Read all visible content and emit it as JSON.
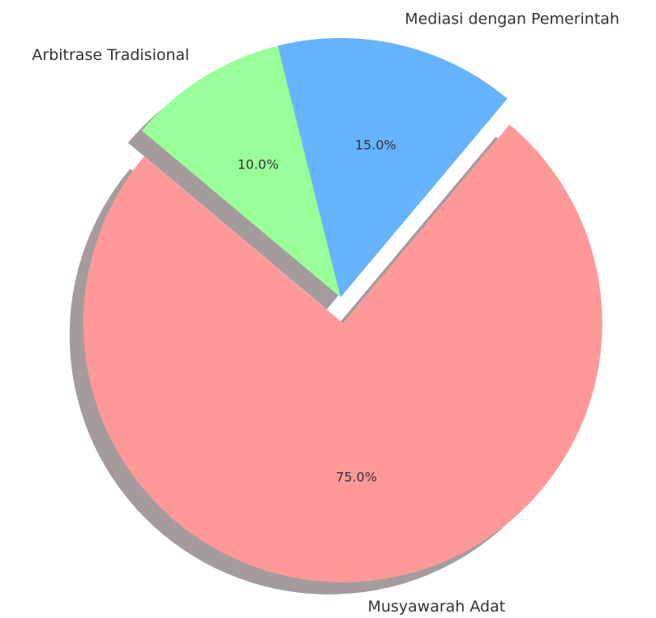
{
  "chart_data": {
    "type": "pie",
    "categories": [
      "Musyawarah Adat",
      "Mediasi dengan Pemerintah",
      "Arbitrase Tradisional"
    ],
    "values": [
      75,
      15,
      10
    ],
    "value_labels": [
      "75.0%",
      "15.0%",
      "10.0%"
    ],
    "colors": [
      "#ff9999",
      "#66b3ff",
      "#99ff99"
    ],
    "shadow": true
  }
}
